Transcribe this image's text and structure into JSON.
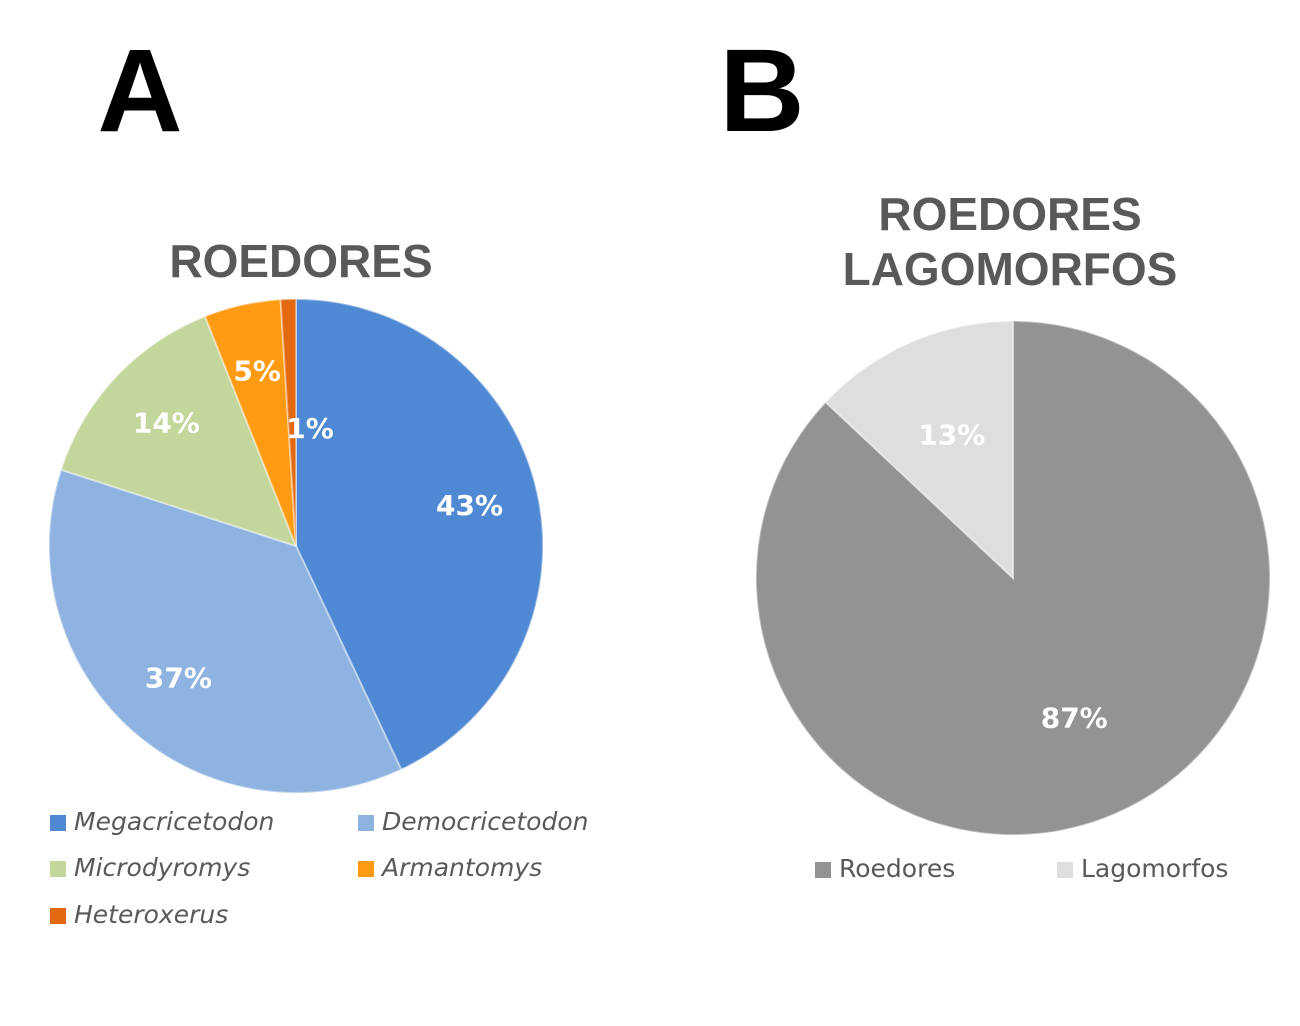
{
  "chart_data": [
    {
      "type": "pie",
      "panel_label": "A",
      "title": [
        "ROEDORES"
      ],
      "categories": [
        "Megacricetodon",
        "Democricetodon",
        "Microdyromys",
        "Armantomys",
        "Heteroxerus"
      ],
      "values": [
        43,
        37,
        14,
        5,
        1
      ],
      "value_labels": [
        "43%",
        "37%",
        "14%",
        "5%",
        "1%"
      ],
      "colors": [
        "#5089d3",
        "#8eb3e0",
        "#c3d69b",
        "#ff9b12",
        "#e2690f"
      ],
      "legend_italic": true
    },
    {
      "type": "pie",
      "panel_label": "B",
      "title": [
        "ROEDORES",
        "LAGOMORFOS"
      ],
      "categories": [
        "Roedores",
        "Lagomorfos"
      ],
      "values": [
        87,
        13
      ],
      "value_labels": [
        "87%",
        "13%"
      ],
      "colors": [
        "#939393",
        "#dedede"
      ],
      "legend_italic": false
    }
  ]
}
